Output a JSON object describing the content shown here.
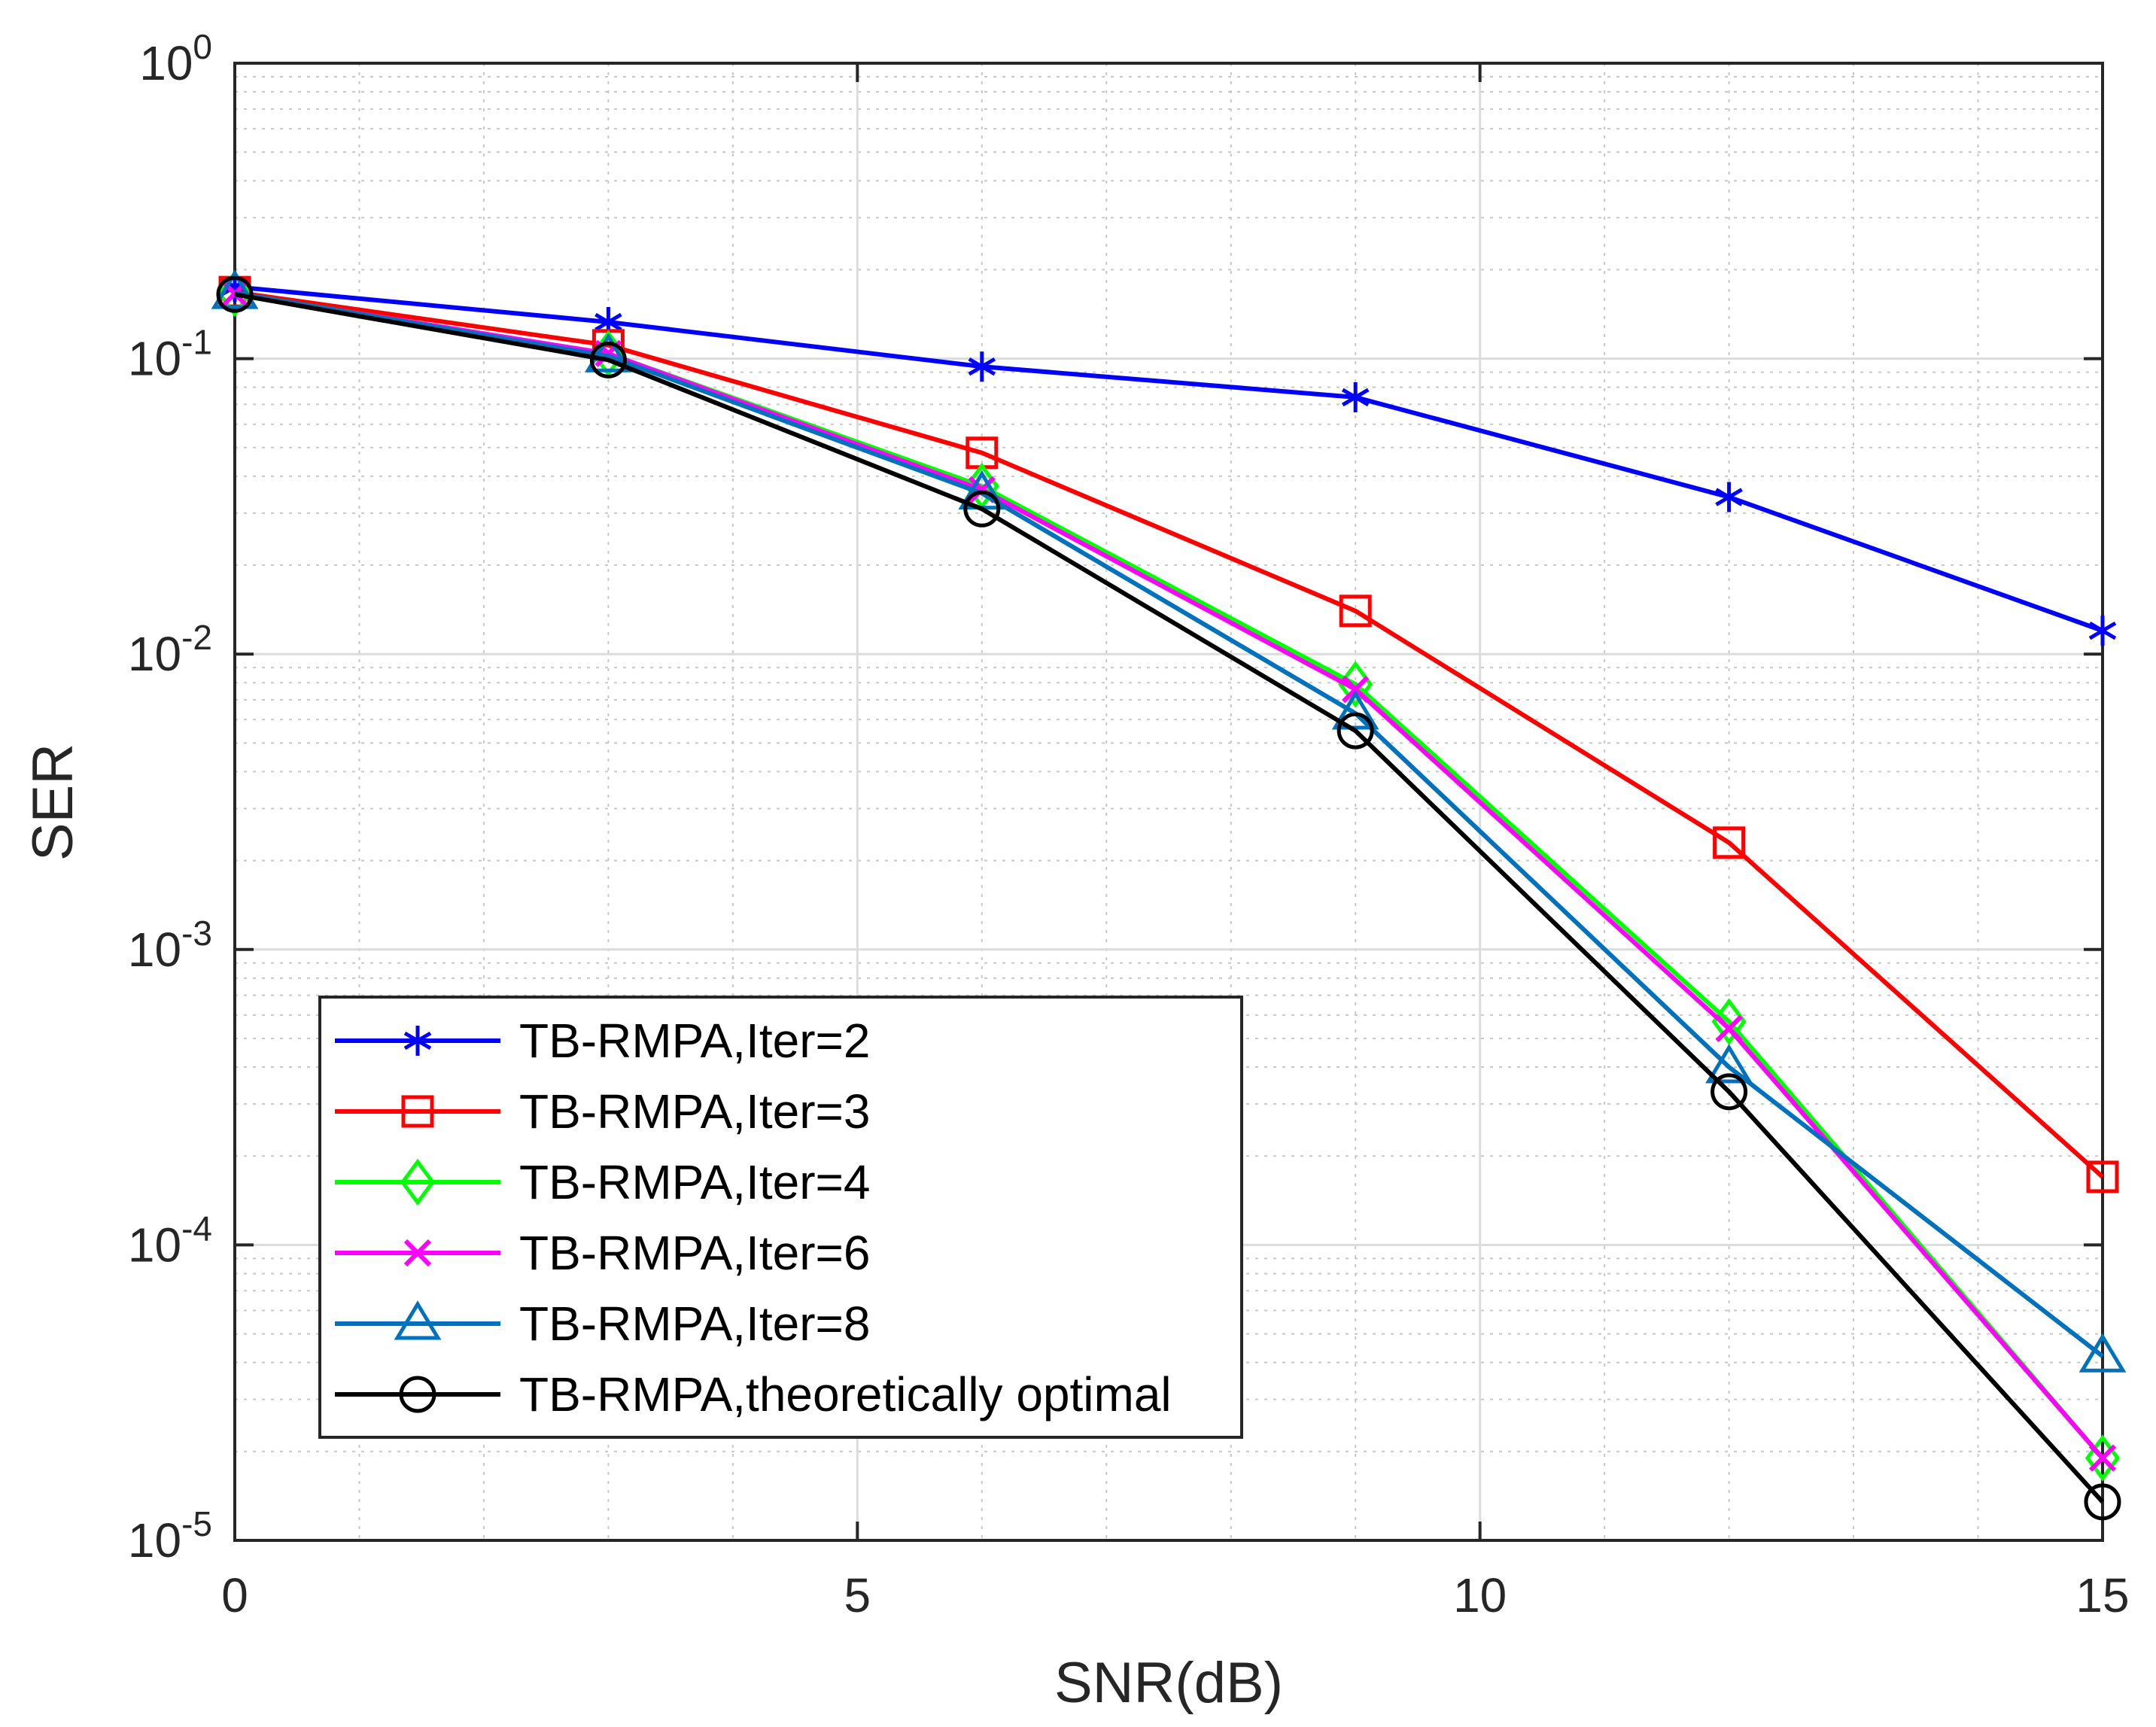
{
  "chart_data": {
    "type": "line",
    "title": "",
    "xlabel": "SNR(dB)",
    "ylabel": "SER",
    "xlim": [
      0,
      15
    ],
    "ylim": [
      1e-05,
      1
    ],
    "yscale": "log",
    "grid": true,
    "minor_grid": true,
    "legend_position": "bottom-left",
    "x": [
      0,
      3,
      6,
      9,
      12,
      15
    ],
    "xticks": [
      {
        "value": 0,
        "label": "0"
      },
      {
        "value": 5,
        "label": "5"
      },
      {
        "value": 10,
        "label": "10"
      },
      {
        "value": 15,
        "label": "15"
      }
    ],
    "yticks": [
      {
        "value": 1,
        "base": "10",
        "exp": "0"
      },
      {
        "value": 0.1,
        "base": "10",
        "exp": "-1"
      },
      {
        "value": 0.01,
        "base": "10",
        "exp": "-2"
      },
      {
        "value": 0.001,
        "base": "10",
        "exp": "-3"
      },
      {
        "value": 0.0001,
        "base": "10",
        "exp": "-4"
      },
      {
        "value": 1e-05,
        "base": "10",
        "exp": "-5"
      }
    ],
    "series": [
      {
        "name": "TB-RMPA,Iter=2",
        "color": "#0000ff",
        "marker": "asterisk",
        "values": [
          0.175,
          0.133,
          0.094,
          0.074,
          0.034,
          0.012
        ]
      },
      {
        "name": "TB-RMPA,Iter=3",
        "color": "#ff0000",
        "marker": "square",
        "values": [
          0.168,
          0.111,
          0.048,
          0.014,
          0.0023,
          0.00017
        ]
      },
      {
        "name": "TB-RMPA,Iter=4",
        "color": "#00ff00",
        "marker": "diamond",
        "values": [
          0.166,
          0.104,
          0.037,
          0.0079,
          0.00057,
          1.9e-05
        ]
      },
      {
        "name": "TB-RMPA,Iter=6",
        "color": "#ff00ff",
        "marker": "x",
        "values": [
          0.166,
          0.104,
          0.036,
          0.0076,
          0.00054,
          1.9e-05
        ]
      },
      {
        "name": "TB-RMPA,Iter=8",
        "color": "#0072bd",
        "marker": "triangle",
        "values": [
          0.167,
          0.102,
          0.035,
          0.0063,
          0.0004,
          4.2e-05
        ]
      },
      {
        "name": "TB-RMPA,theoretically optimal",
        "color": "#000000",
        "marker": "circle",
        "values": [
          0.165,
          0.099,
          0.031,
          0.0055,
          0.00033,
          1.35e-05
        ]
      }
    ]
  }
}
